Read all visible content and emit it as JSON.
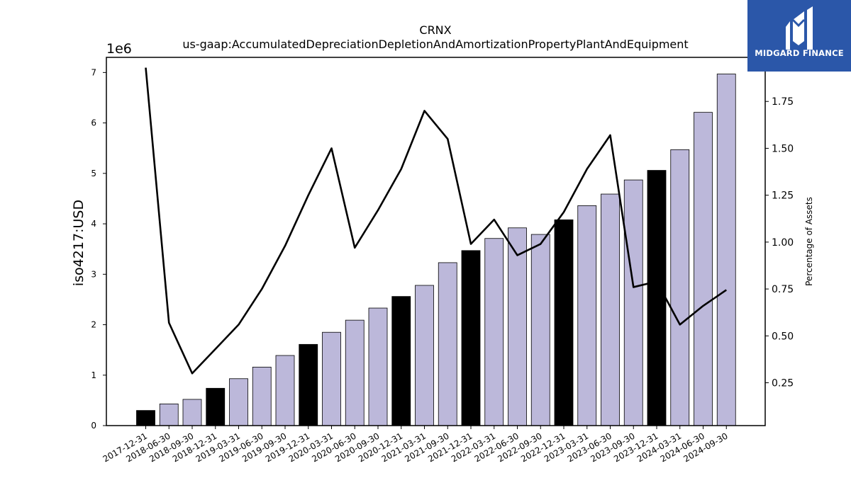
{
  "brand": {
    "name": "MIDGARD FINANCE",
    "bg_color": "#2b57a9",
    "logo_icon": "midgard-m-logo-icon"
  },
  "chart_data": {
    "type": "bar",
    "title": "CRNX",
    "subtitle": "us-gaap:AccumulatedDepreciationDepletionAndAmortizationPropertyPlantAndEquipment",
    "ylabel": "iso4217:USD",
    "y_offset_label": "1e6",
    "y2label": "Percentage of Assets",
    "categories": [
      "2017-12-31",
      "2018-06-30",
      "2018-09-30",
      "2018-12-31",
      "2019-03-31",
      "2019-06-30",
      "2019-09-30",
      "2019-12-31",
      "2020-03-31",
      "2020-06-30",
      "2020-09-30",
      "2020-12-31",
      "2021-03-31",
      "2021-09-30",
      "2021-12-31",
      "2022-03-31",
      "2022-06-30",
      "2022-09-30",
      "2022-12-31",
      "2023-03-31",
      "2023-06-30",
      "2023-09-30",
      "2023-12-31",
      "2024-03-31",
      "2024-06-30",
      "2024-09-30"
    ],
    "series": [
      {
        "type": "bar",
        "values": [
          300000,
          430000,
          520000,
          740000,
          930000,
          1160000,
          1390000,
          1610000,
          1850000,
          2090000,
          2330000,
          2560000,
          2780000,
          3230000,
          3470000,
          3710000,
          3920000,
          3790000,
          4080000,
          4360000,
          4590000,
          4870000,
          5060000,
          5470000,
          6210000,
          6970000
        ],
        "colors": [
          "#000000",
          "#bcb8da",
          "#bcb8da",
          "#000000",
          "#bcb8da",
          "#bcb8da",
          "#bcb8da",
          "#000000",
          "#bcb8da",
          "#bcb8da",
          "#bcb8da",
          "#000000",
          "#bcb8da",
          "#bcb8da",
          "#000000",
          "#bcb8da",
          "#bcb8da",
          "#bcb8da",
          "#000000",
          "#bcb8da",
          "#bcb8da",
          "#bcb8da",
          "#000000",
          "#bcb8da",
          "#bcb8da",
          "#bcb8da"
        ]
      },
      {
        "type": "line",
        "axis": "right",
        "values": [
          1.93,
          0.57,
          0.3,
          0.43,
          0.56,
          0.75,
          0.98,
          1.25,
          1.5,
          0.97,
          1.17,
          1.39,
          1.7,
          1.55,
          0.99,
          1.12,
          0.93,
          0.99,
          1.16,
          1.39,
          1.57,
          0.76,
          0.79,
          0.56,
          0.66,
          0.745
        ]
      }
    ],
    "ylim": [
      0,
      7300000
    ],
    "yticks": [
      0,
      1000000,
      2000000,
      3000000,
      4000000,
      5000000,
      6000000,
      7000000
    ],
    "yticklabels": [
      "0",
      "1",
      "2",
      "3",
      "4",
      "5",
      "6",
      "7"
    ],
    "y2lim": [
      0.0216,
      1.985
    ],
    "y2ticks": [
      0.25,
      0.5,
      0.75,
      1.0,
      1.25,
      1.5,
      1.75
    ],
    "y2ticklabels": [
      "0.25",
      "0.50",
      "0.75",
      "1.00",
      "1.25",
      "1.50",
      "1.75"
    ],
    "grid": false,
    "legend": "none",
    "bar_highlight_color": "#000000",
    "bar_color": "#bcb8da",
    "line_color": "#000000"
  }
}
